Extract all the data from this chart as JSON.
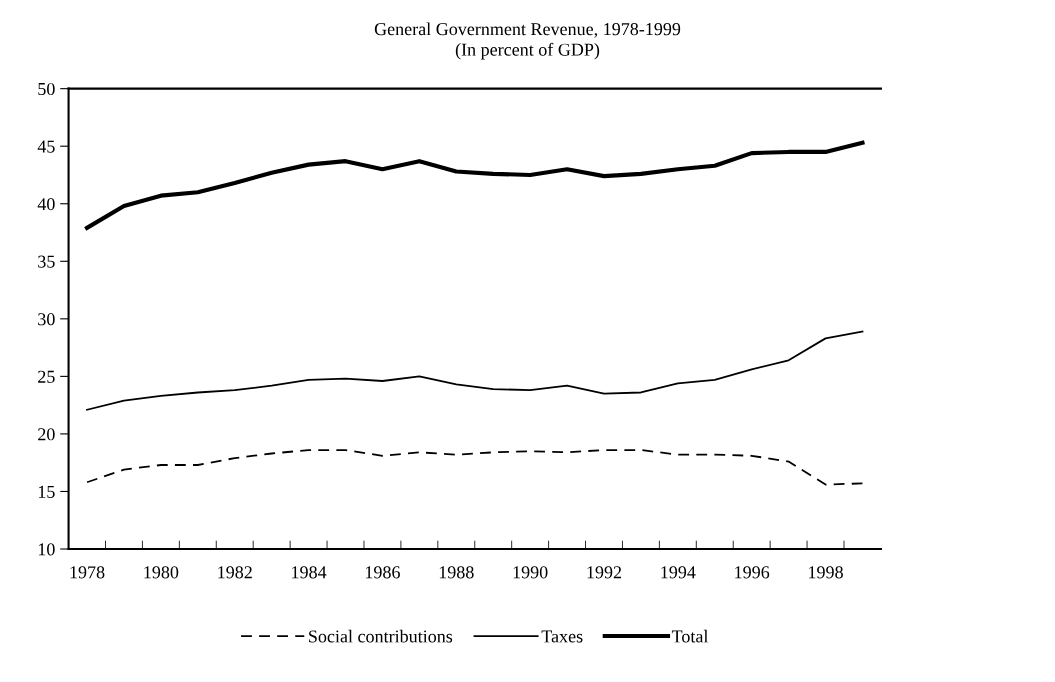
{
  "chart_data": {
    "type": "line",
    "title": "General Government Revenue, 1978-1999",
    "subtitle": "(In percent of GDP)",
    "categories": [
      "1978",
      null,
      "1980",
      null,
      "1982",
      null,
      "1984",
      null,
      "1986",
      null,
      "1988",
      null,
      "1990",
      null,
      "1992",
      null,
      "1994",
      null,
      "1996",
      null,
      "1998",
      null
    ],
    "series": [
      {
        "name": "Social contributions",
        "color": "#000000",
        "line_style": "dashed",
        "values": [
          15.8,
          16.9,
          17.3,
          17.3,
          17.9,
          18.3,
          18.6,
          18.6,
          18.1,
          18.4,
          18.2,
          18.4,
          18.5,
          18.4,
          18.6,
          18.6,
          18.2,
          18.2,
          18.1,
          17.6,
          15.6,
          15.7
        ]
      },
      {
        "name": "Taxes",
        "color": "#000000",
        "line_style": "solid",
        "values": [
          22.1,
          22.9,
          23.3,
          23.6,
          23.8,
          24.2,
          24.7,
          24.8,
          24.6,
          25.0,
          24.3,
          23.9,
          23.8,
          24.2,
          23.5,
          23.6,
          24.4,
          24.7,
          25.6,
          26.4,
          28.3,
          28.9
        ]
      },
      {
        "name": "Total",
        "color": "#000000",
        "line_style": "solid",
        "values": [
          37.9,
          39.8,
          40.7,
          41.0,
          41.8,
          42.7,
          43.4,
          43.7,
          43.0,
          43.7,
          42.8,
          42.6,
          42.5,
          43.0,
          42.4,
          42.6,
          43.0,
          43.3,
          44.4,
          44.5,
          44.5,
          45.3
        ]
      }
    ],
    "ylim": [
      10,
      50
    ],
    "yticks": [
      10,
      15,
      20,
      25,
      30,
      35,
      40,
      45,
      50
    ],
    "grid": false,
    "legend": "bottom",
    "marker": "none"
  }
}
